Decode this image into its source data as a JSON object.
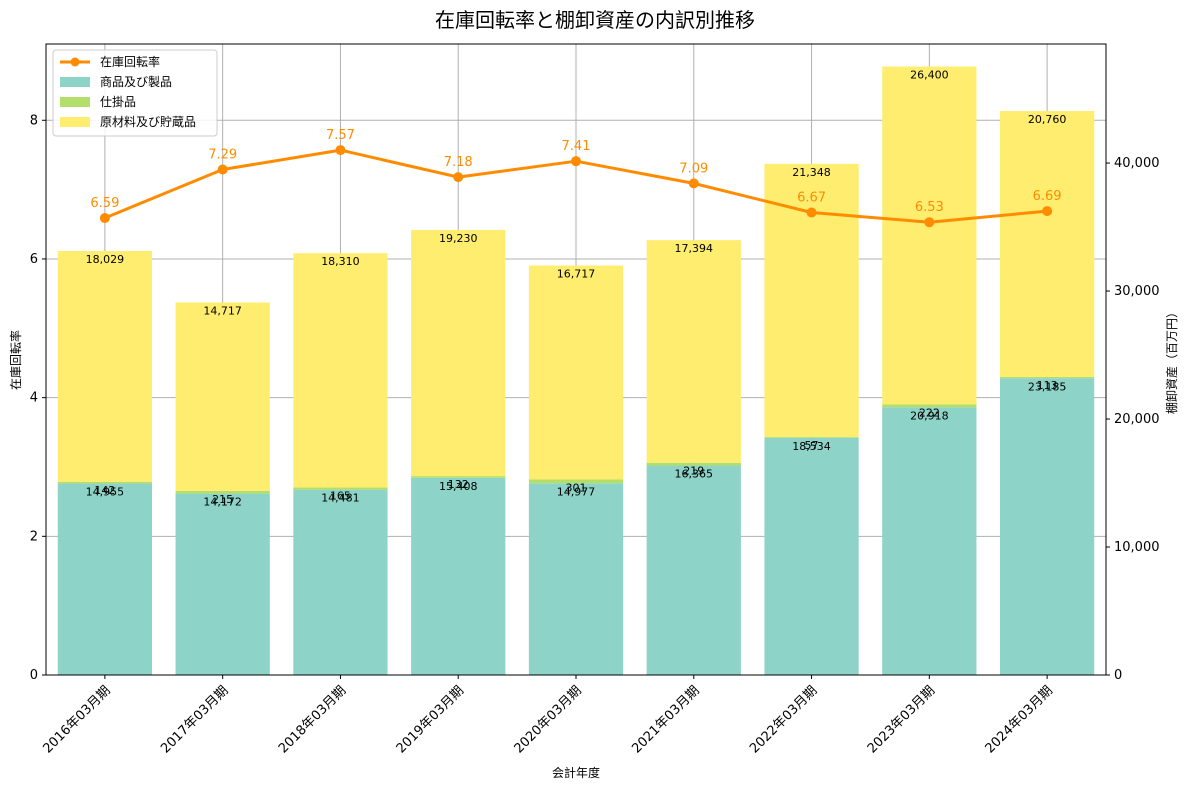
{
  "chart_data": {
    "type": "bar",
    "title": "在庫回転率と棚卸資産の内訳別推移",
    "xlabel": "会計年度",
    "ylabel_left": "在庫回転率",
    "ylabel_right": "棚卸資産（百万円）",
    "categories": [
      "2016年03月期",
      "2017年03月期",
      "2018年03月期",
      "2019年03月期",
      "2020年03月期",
      "2021年03月期",
      "2022年03月期",
      "2023年03月期",
      "2024年03月期"
    ],
    "ylim_left": [
      0,
      9.1
    ],
    "ylim_right": [
      0,
      49300
    ],
    "yticks_left": [
      "0",
      "2",
      "4",
      "6",
      "8"
    ],
    "yticks_right": [
      "0",
      "10,000",
      "20,000",
      "30,000",
      "40,000"
    ],
    "grid": true,
    "legend_position": "top-left",
    "line_series": {
      "name": "在庫回転率",
      "color": "#ff8c00",
      "values": [
        6.59,
        7.29,
        7.57,
        7.18,
        7.41,
        7.09,
        6.67,
        6.53,
        6.69
      ]
    },
    "bar_series": [
      {
        "name": "商品及び製品",
        "color": "#8dd3c7",
        "values": [
          14955,
          14172,
          14481,
          15408,
          14977,
          16365,
          18534,
          20918,
          23185
        ],
        "labels": [
          "14,955",
          "14,172",
          "14,481",
          "15,408",
          "14,977",
          "16,365",
          "18,534",
          "20,918",
          "23,185"
        ]
      },
      {
        "name": "仕掛品",
        "color": "#b3de69",
        "values": [
          142,
          215,
          165,
          132,
          301,
          219,
          57,
          222,
          113
        ],
        "labels": [
          "142",
          "215",
          "165",
          "132",
          "301",
          "219",
          "57",
          "222",
          "113"
        ]
      },
      {
        "name": "原材料及び貯蔵品",
        "color": "#ffed6f",
        "values": [
          18029,
          14717,
          18310,
          19230,
          16717,
          17394,
          21348,
          26400,
          20760
        ],
        "labels": [
          "18,029",
          "14,717",
          "18,310",
          "19,230",
          "16,717",
          "17,394",
          "21,348",
          "26,400",
          "20,760"
        ]
      }
    ]
  }
}
